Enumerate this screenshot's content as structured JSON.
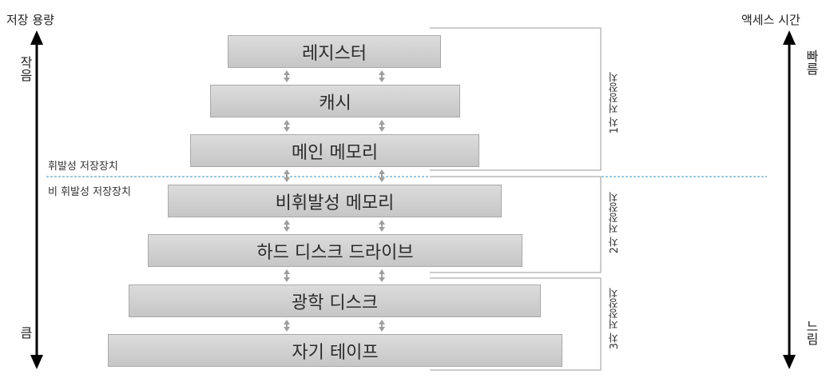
{
  "left_axis": {
    "title": "저장 용량",
    "top_label": "작음",
    "bottom_label": "큼"
  },
  "right_axis": {
    "title": "액세스 시간",
    "top_label": "빠름",
    "bottom_label": "느림"
  },
  "levels": [
    "레지스터",
    "캐시",
    "메인 메모리",
    "비휘발성 메모리",
    "하드 디스크 드라이브",
    "광학 디스크",
    "자기 테이프"
  ],
  "divider": {
    "volatile_label": "휘발성 저장장치",
    "nonvolatile_label": "비 휘발성 저장장치"
  },
  "groups": [
    "1차 저장장치",
    "2차 저장장치",
    "3차 저장장치"
  ]
}
